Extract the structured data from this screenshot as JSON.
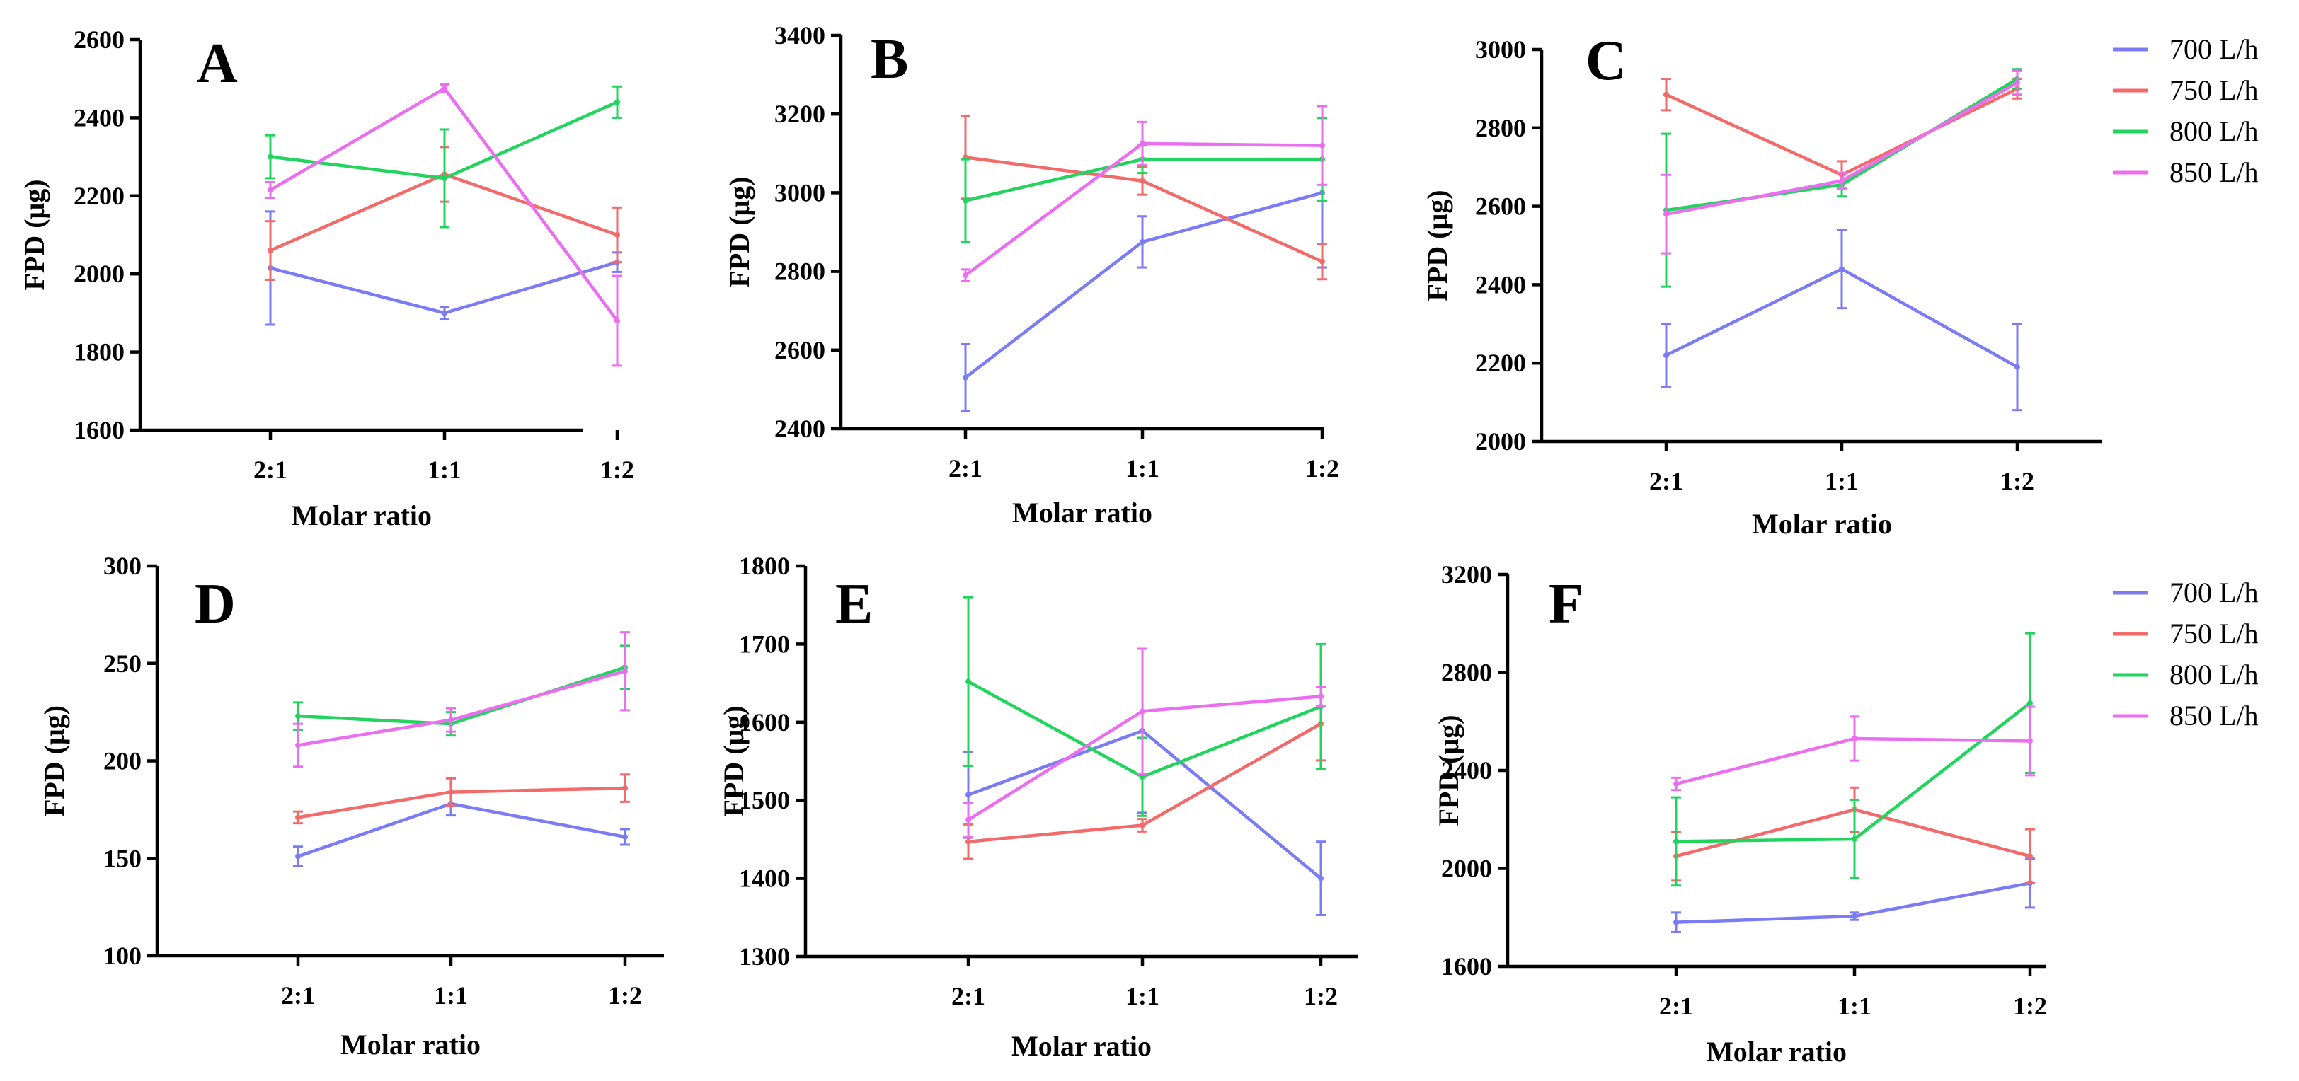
{
  "colors": {
    "700 L/h": "#7b7bf5",
    "750 L/h": "#f26a6a",
    "800 L/h": "#22d35e",
    "850 L/h": "#ec6ef0"
  },
  "legends": [
    {
      "panel": "C",
      "entries": [
        "700 L/h",
        "750 L/h",
        "800 L/h",
        "850 L/h"
      ]
    },
    {
      "panel": "F",
      "entries": [
        "700 L/h",
        "750 L/h",
        "800 L/h",
        "850 L/h"
      ]
    }
  ],
  "chart_data": [
    {
      "type": "line",
      "panel_label": "A",
      "categories": [
        "2:1",
        "1:1",
        "1:2"
      ],
      "xlabel": "Molar ratio",
      "ylabel": "FPD (μg)",
      "ylim": [
        1600,
        2600
      ],
      "yticks": [
        1600,
        1800,
        2000,
        2200,
        2400,
        2600
      ],
      "series": [
        {
          "name": "700 L/h",
          "values": [
            2015,
            1900,
            2030
          ],
          "errors": [
            145,
            15,
            25
          ]
        },
        {
          "name": "750 L/h",
          "values": [
            2060,
            2255,
            2100
          ],
          "errors": [
            75,
            70,
            70
          ]
        },
        {
          "name": "800 L/h",
          "values": [
            2300,
            2245,
            2440
          ],
          "errors": [
            55,
            125,
            40
          ]
        },
        {
          "name": "850 L/h",
          "values": [
            2215,
            2475,
            1880
          ],
          "errors": [
            20,
            10,
            115
          ]
        }
      ]
    },
    {
      "type": "line",
      "panel_label": "B",
      "categories": [
        "2:1",
        "1:1",
        "1:2"
      ],
      "xlabel": "Molar ratio",
      "ylabel": "FPD (μg)",
      "ylim": [
        2400,
        3400
      ],
      "yticks": [
        2400,
        2600,
        2800,
        3000,
        3200,
        3400
      ],
      "series": [
        {
          "name": "700 L/h",
          "values": [
            2530,
            2875,
            3000
          ],
          "errors": [
            85,
            65,
            190
          ]
        },
        {
          "name": "750 L/h",
          "values": [
            3090,
            3030,
            2825
          ],
          "errors": [
            105,
            35,
            45
          ]
        },
        {
          "name": "800 L/h",
          "values": [
            2980,
            3085,
            3085
          ],
          "errors": [
            105,
            35,
            105
          ]
        },
        {
          "name": "850 L/h",
          "values": [
            2790,
            3125,
            3120
          ],
          "errors": [
            15,
            55,
            100
          ]
        }
      ]
    },
    {
      "type": "line",
      "panel_label": "C",
      "categories": [
        "2:1",
        "1:1",
        "1:2"
      ],
      "xlabel": "Molar ratio",
      "ylabel": "FPD (μg)",
      "ylim": [
        2000,
        3000
      ],
      "yticks": [
        2000,
        2200,
        2400,
        2600,
        2800,
        3000
      ],
      "legend": "right",
      "series": [
        {
          "name": "700 L/h",
          "values": [
            2220,
            2440,
            2190
          ],
          "errors": [
            80,
            100,
            110
          ]
        },
        {
          "name": "750 L/h",
          "values": [
            2885,
            2680,
            2900
          ],
          "errors": [
            40,
            35,
            25
          ]
        },
        {
          "name": "800 L/h",
          "values": [
            2590,
            2655,
            2925
          ],
          "errors": [
            195,
            30,
            25
          ]
        },
        {
          "name": "850 L/h",
          "values": [
            2580,
            2665,
            2915
          ],
          "errors": [
            100,
            20,
            30
          ]
        }
      ]
    },
    {
      "type": "line",
      "panel_label": "D",
      "categories": [
        "2:1",
        "1:1",
        "1:2"
      ],
      "xlabel": "Molar ratio",
      "ylabel": "FPD (μg)",
      "ylim": [
        100,
        300
      ],
      "yticks": [
        100,
        150,
        200,
        250,
        300
      ],
      "series": [
        {
          "name": "700 L/h",
          "values": [
            151,
            178,
            161
          ],
          "errors": [
            5,
            6,
            4
          ]
        },
        {
          "name": "750 L/h",
          "values": [
            171,
            184,
            186
          ],
          "errors": [
            3,
            7,
            7
          ]
        },
        {
          "name": "800 L/h",
          "values": [
            223,
            219,
            248
          ],
          "errors": [
            7,
            6,
            11
          ]
        },
        {
          "name": "850 L/h",
          "values": [
            208,
            221,
            246
          ],
          "errors": [
            11,
            6,
            20
          ]
        }
      ]
    },
    {
      "type": "line",
      "panel_label": "E",
      "categories": [
        "2:1",
        "1:1",
        "1:2"
      ],
      "xlabel": "Molar ratio",
      "ylabel": "FPD (μg)",
      "ylim": [
        1300,
        1800
      ],
      "yticks": [
        1300,
        1400,
        1500,
        1600,
        1700,
        1800
      ],
      "series": [
        {
          "name": "700 L/h",
          "values": [
            1507,
            1589,
            1400
          ],
          "errors": [
            55,
            105,
            47
          ]
        },
        {
          "name": "750 L/h",
          "values": [
            1447,
            1468,
            1598
          ],
          "errors": [
            22,
            8,
            47
          ]
        },
        {
          "name": "800 L/h",
          "values": [
            1652,
            1530,
            1620
          ],
          "errors": [
            108,
            50,
            80
          ]
        },
        {
          "name": "850 L/h",
          "values": [
            1475,
            1614,
            1633
          ],
          "errors": [
            22,
            80,
            12
          ]
        }
      ]
    },
    {
      "type": "line",
      "panel_label": "F",
      "categories": [
        "2:1",
        "1:1",
        "1:2"
      ],
      "xlabel": "Molar ratio",
      "ylabel": "FPD (μg)",
      "ylim": [
        1600,
        3200
      ],
      "yticks": [
        1600,
        2000,
        2400,
        2800,
        3200
      ],
      "legend": "right",
      "series": [
        {
          "name": "700 L/h",
          "values": [
            1780,
            1805,
            1940
          ],
          "errors": [
            40,
            15,
            100
          ]
        },
        {
          "name": "750 L/h",
          "values": [
            2050,
            2240,
            2050
          ],
          "errors": [
            100,
            90,
            110
          ]
        },
        {
          "name": "800 L/h",
          "values": [
            2110,
            2120,
            2675
          ],
          "errors": [
            180,
            160,
            285
          ]
        },
        {
          "name": "850 L/h",
          "values": [
            2345,
            2530,
            2520
          ],
          "errors": [
            25,
            90,
            140
          ]
        }
      ]
    }
  ]
}
